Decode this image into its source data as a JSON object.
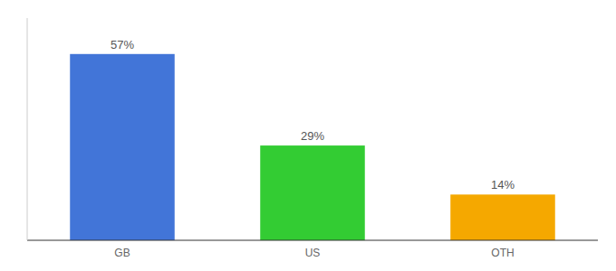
{
  "chart_data": {
    "type": "bar",
    "categories": [
      "GB",
      "US",
      "OTH"
    ],
    "values": [
      57,
      29,
      14
    ],
    "value_labels": [
      "57%",
      "29%",
      "14%"
    ],
    "colors": [
      "#4275d8",
      "#33cc33",
      "#f5a800"
    ],
    "ylim": [
      0,
      68
    ],
    "data_labels": true,
    "tick_labels": "x",
    "grid": false
  }
}
